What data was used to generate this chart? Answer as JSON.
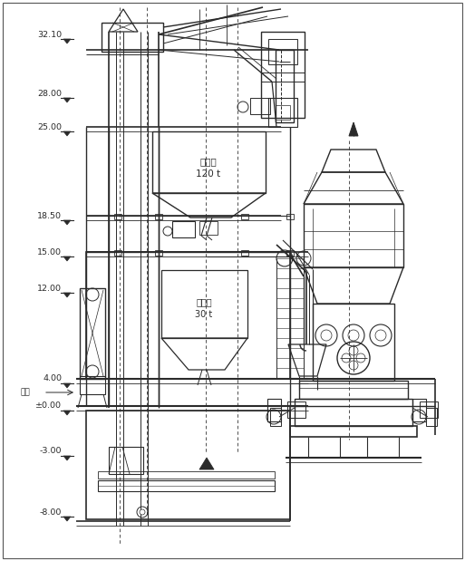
{
  "bg_color": "#ffffff",
  "line_color": "#2a2a2a",
  "elev_data": [
    [
      "32.10",
      38
    ],
    [
      "28.00",
      103
    ],
    [
      "25.00",
      140
    ],
    [
      "18.50",
      238
    ],
    [
      "15.00",
      278
    ],
    [
      "12.00",
      318
    ],
    [
      "4.00",
      418
    ],
    [
      "±0.00",
      448
    ],
    [
      "-3.00",
      498
    ],
    [
      "-8.00",
      565
    ]
  ],
  "label_wai_pai": "外排",
  "label_mo_tou_cang": "磨头仓\n120 t",
  "label_huan_chong_cang": "缓冲仓\n30 t"
}
